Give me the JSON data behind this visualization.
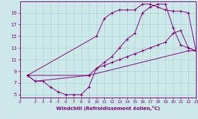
{
  "xlabel": "Windchill (Refroidissement éolien,°C)",
  "background_color": "#cce8e8",
  "line_color": "#800080",
  "xlim": [
    0,
    23
  ],
  "ylim": [
    4.5,
    21
  ],
  "xticks": [
    0,
    2,
    3,
    4,
    5,
    6,
    7,
    8,
    9,
    10,
    11,
    12,
    13,
    14,
    15,
    16,
    17,
    18,
    19,
    20,
    21,
    22,
    23
  ],
  "yticks": [
    5,
    7,
    9,
    11,
    13,
    15,
    17,
    19
  ],
  "line1_x": [
    1,
    2,
    3,
    4,
    5,
    6,
    7,
    8,
    9,
    10,
    11,
    12,
    13,
    14,
    15,
    16,
    17,
    18,
    19,
    20,
    21,
    22,
    23
  ],
  "line1_y": [
    8.3,
    7.3,
    7.3,
    6.3,
    5.5,
    5.0,
    5.0,
    5.0,
    6.3,
    9.5,
    10.5,
    11.5,
    13.0,
    14.5,
    15.5,
    19.0,
    20.0,
    20.5,
    20.5,
    16.5,
    13.5,
    13.0,
    12.5
  ],
  "line2_x": [
    1,
    2,
    9,
    10,
    11,
    12,
    13,
    14,
    15,
    16,
    17,
    18,
    19,
    20,
    21,
    22,
    23
  ],
  "line2_y": [
    8.3,
    7.3,
    8.3,
    9.5,
    10.0,
    10.5,
    11.0,
    11.5,
    12.0,
    12.5,
    13.0,
    13.5,
    14.0,
    15.5,
    16.0,
    13.0,
    12.5
  ],
  "line3_x": [
    1,
    10,
    11,
    12,
    13,
    14,
    15,
    16,
    17,
    18,
    19,
    20,
    21,
    22,
    23
  ],
  "line3_y": [
    8.3,
    15.0,
    18.0,
    19.0,
    19.5,
    19.5,
    19.5,
    20.5,
    20.5,
    20.0,
    19.5,
    19.3,
    19.3,
    19.0,
    12.5
  ],
  "line4_x": [
    1,
    9,
    22,
    23
  ],
  "line4_y": [
    8.3,
    8.3,
    12.5,
    12.5
  ]
}
